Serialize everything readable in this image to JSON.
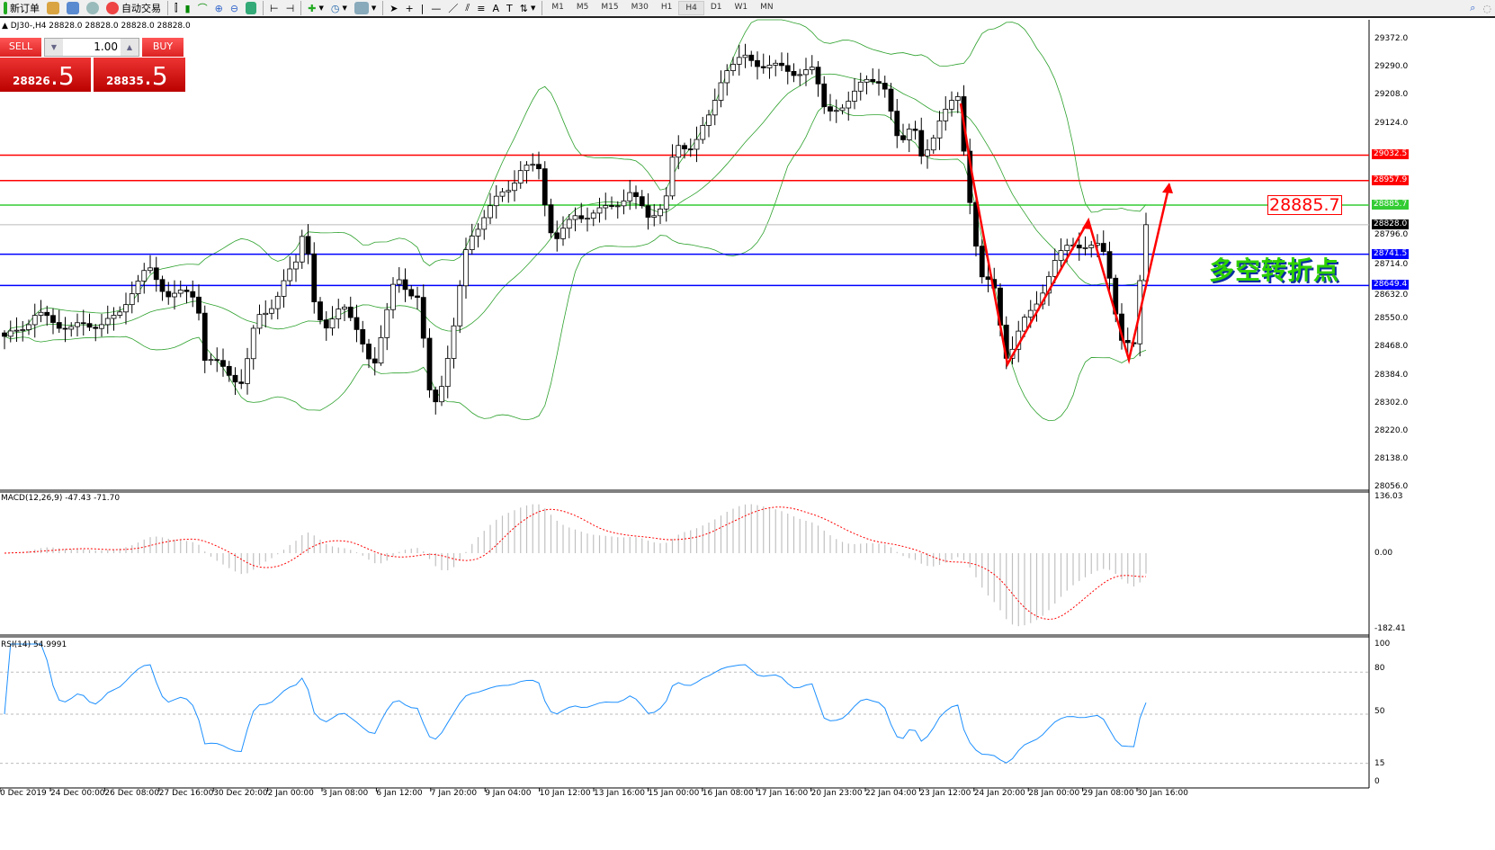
{
  "toolbar": {
    "new_order": "新订单",
    "auto_trading": "自动交易",
    "icons": [
      "new-order-icon",
      "history-icon",
      "market-watch-icon",
      "signals-icon",
      "auto-trading-icon",
      "bar-chart-icon",
      "candlestick-icon",
      "line-chart-icon",
      "zoom-in-icon",
      "zoom-out-icon",
      "tile-windows-icon",
      "chart-shift-icon",
      "autoscroll-icon",
      "new-chart-icon",
      "periods-icon",
      "templates-icon",
      "cursor-icon",
      "crosshair-icon",
      "vertical-line-icon",
      "horizontal-line-icon",
      "trendline-icon",
      "equidistant-channel-icon",
      "fibonacci-icon",
      "text-icon",
      "text-label-icon",
      "arrows-icon"
    ],
    "timeframes": [
      "M1",
      "M5",
      "M15",
      "M30",
      "H1",
      "H4",
      "D1",
      "W1",
      "MN"
    ],
    "active_timeframe": "H4"
  },
  "symbol_line": "DJ30-,H4  28828.0 28828.0 28828.0 28828.0",
  "trade_panel": {
    "sell_label": "SELL",
    "buy_label": "BUY",
    "lot": "1.00",
    "sell_price_main": "28826",
    "sell_price_big": ".5",
    "buy_price_main": "28835",
    "buy_price_big": ".5"
  },
  "price_axis": [
    "29372.0",
    "29290.0",
    "29208.0",
    "29124.0",
    "28796.0",
    "28714.0",
    "28632.0",
    "28550.0",
    "28468.0",
    "28384.0",
    "28302.0",
    "28220.0",
    "28138.0",
    "28056.0"
  ],
  "levels": [
    {
      "label": "29032.5",
      "value": 29032.5,
      "color": "#ff0000"
    },
    {
      "label": "28957.9",
      "value": 28957.9,
      "color": "#ff0000"
    },
    {
      "label": "28885.7",
      "value": 28885.7,
      "color": "#33cc33"
    },
    {
      "label": "28828.0",
      "value": 28828.0,
      "color": "#000000"
    },
    {
      "label": "28741.5",
      "value": 28741.5,
      "color": "#0000ff"
    },
    {
      "label": "28649.4",
      "value": 28649.4,
      "color": "#0000ff"
    }
  ],
  "annotation_price": "28885.7",
  "annotation_text": "多空转折点",
  "macd": {
    "label": "MACD(12,26,9) -47.43 -71.70",
    "axis": [
      "136.03",
      "0.00",
      "-182.41"
    ]
  },
  "rsi": {
    "label": "RSI(14) 54.9991",
    "axis": [
      "100",
      "80",
      "50",
      "15",
      "0"
    ]
  },
  "time_axis": [
    "0 Dec 2019",
    "24 Dec 00:00",
    "26 Dec 08:00",
    "27 Dec 16:00",
    "30 Dec 20:00",
    "2 Jan 00:00",
    "3 Jan 08:00",
    "6 Jan 12:00",
    "7 Jan 20:00",
    "9 Jan 04:00",
    "10 Jan 12:00",
    "13 Jan 16:00",
    "15 Jan 00:00",
    "16 Jan 08:00",
    "17 Jan 16:00",
    "20 Jan 23:00",
    "22 Jan 04:00",
    "23 Jan 12:00",
    "24 Jan 20:00",
    "28 Jan 00:00",
    "29 Jan 08:00",
    "30 Jan 16:00"
  ],
  "chart_data": {
    "type": "candlestick",
    "symbol": "DJ30-",
    "timeframe": "H4",
    "ylim": [
      28056,
      29372
    ],
    "approx_close_path": [
      28489,
      28563,
      28523,
      28550,
      28656,
      28695,
      28629,
      28616,
      28444,
      28365,
      28550,
      28603,
      28722,
      28867,
      28642,
      28497,
      28616,
      28483,
      28418,
      28669,
      28616,
      28272,
      28352,
      28537,
      28775,
      28867,
      28933,
      29000,
      28986,
      28828,
      28788,
      28854,
      28867,
      28920,
      28854,
      28894,
      29052,
      29065,
      29145,
      29290,
      29316,
      29290,
      29277,
      29277,
      29184,
      29158,
      29277,
      29211,
      29078,
      29118,
      29012,
      29145,
      29198,
      28973,
      28669,
      28642,
      28431,
      28550,
      28642,
      28722,
      28788,
      28748,
      28775,
      28669,
      28483,
      28457,
      28629,
      28828
    ],
    "indicators": [
      "Bollinger Bands (20,2)",
      "MACD(12,26,9)",
      "RSI(14)"
    ],
    "colors": {
      "bands": "#2ca02c",
      "macd_hist": "#c0c0c0",
      "macd_signal": "#ff0000",
      "rsi": "#1e90ff",
      "arrow": "#ff0000"
    }
  }
}
